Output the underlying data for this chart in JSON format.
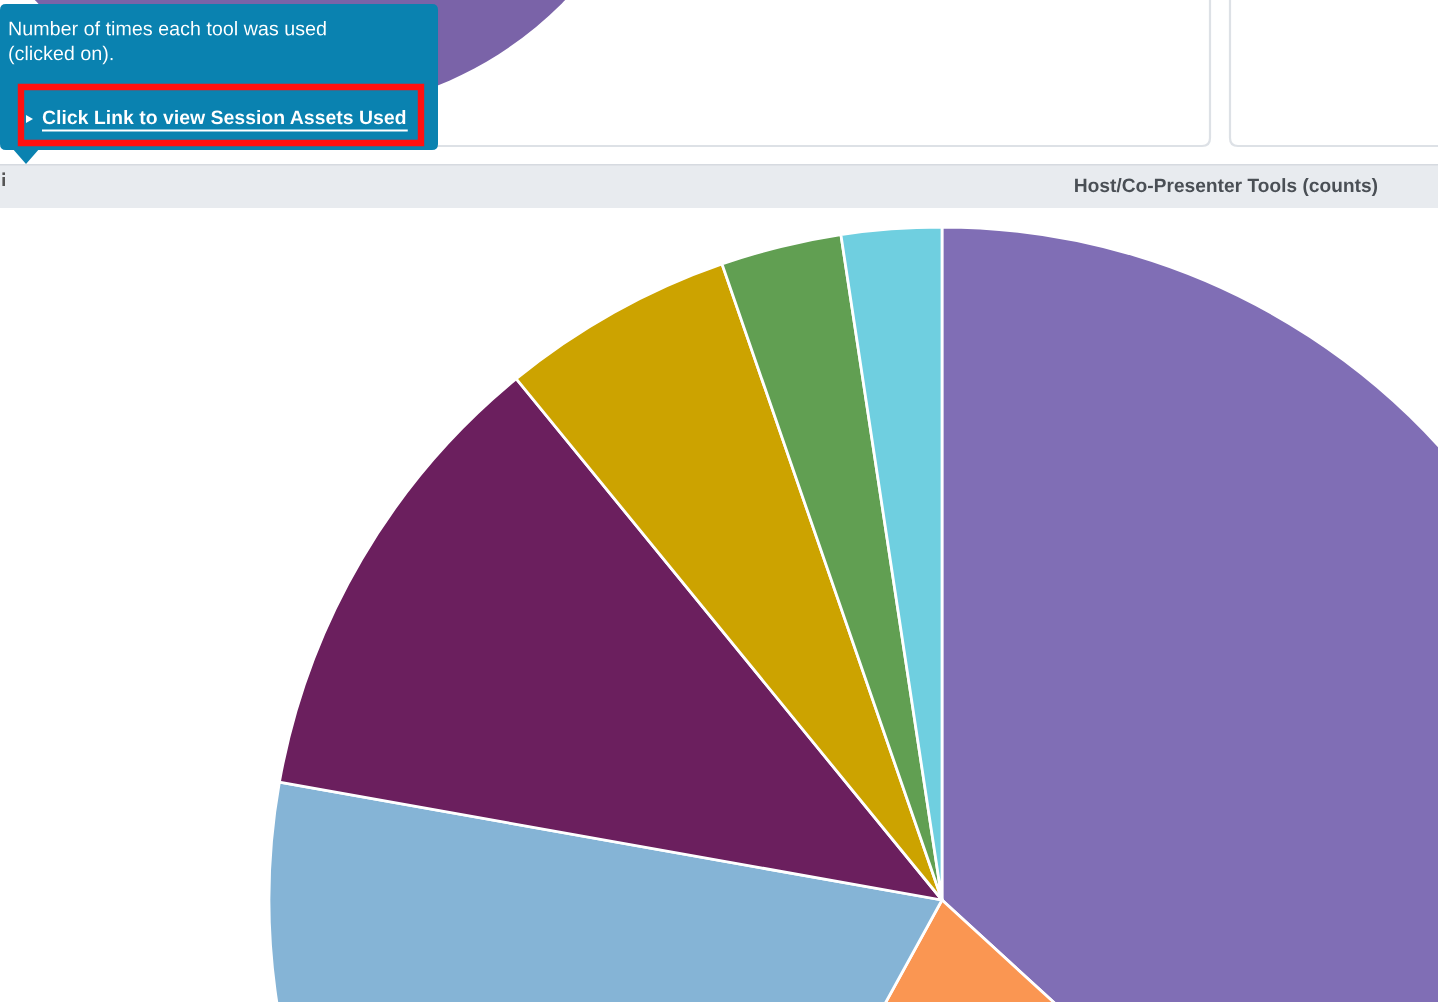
{
  "chart_data": {
    "type": "pie",
    "title": "Host/Co-Presenter Tools (counts)",
    "categories": [
      null,
      null,
      null,
      null,
      null,
      null,
      null
    ],
    "values": [
      36.8,
      21.2,
      19.8,
      11.3,
      5.6,
      2.9,
      2.4
    ],
    "colors": [
      "#806eb5",
      "#fa9652",
      "#85b4d6",
      "#6b1f5e",
      "#cca300",
      "#619f52",
      "#6fcfe0"
    ],
    "annotations": [
      "Number of times each tool was used\n(clicked on).",
      "Click Link to view Session Assets Used"
    ]
  }
}
